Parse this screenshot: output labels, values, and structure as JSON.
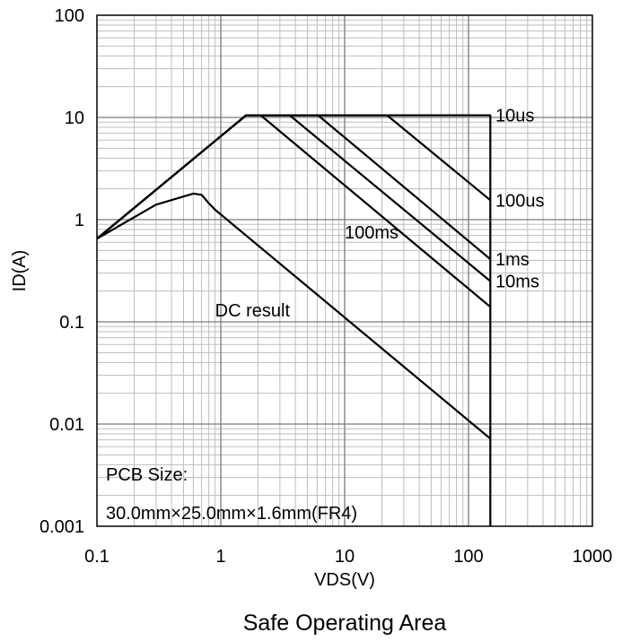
{
  "chart_data": {
    "type": "line",
    "title": "Safe Operating Area",
    "xlabel": "VDS(V)",
    "ylabel": "ID(A)",
    "x_scale": "log",
    "y_scale": "log",
    "xlim": [
      0.1,
      1000
    ],
    "ylim": [
      0.001,
      100
    ],
    "grid": true,
    "x_ticks": [
      "0.1",
      "1",
      "10",
      "100",
      "1000"
    ],
    "y_ticks": [
      "0.001",
      "0.01",
      "0.1",
      "1",
      "10",
      "100"
    ],
    "annotations": [
      "PCB Size:",
      "30.0mm×25.0mm×1.6mm(FR4)"
    ],
    "series": [
      {
        "name": "10us",
        "x": [
          0.1,
          1.6,
          150,
          150
        ],
        "y": [
          0.65,
          10.5,
          10.5,
          0.001
        ]
      },
      {
        "name": "100us",
        "x": [
          0.1,
          1.6,
          22,
          150
        ],
        "y": [
          0.65,
          10.5,
          10.5,
          1.55
        ]
      },
      {
        "name": "1ms",
        "x": [
          0.1,
          1.6,
          6.1,
          150
        ],
        "y": [
          0.65,
          10.5,
          10.5,
          0.41
        ]
      },
      {
        "name": "10ms",
        "x": [
          0.1,
          1.6,
          3.6,
          150
        ],
        "y": [
          0.65,
          10.5,
          10.5,
          0.25
        ]
      },
      {
        "name": "100ms",
        "x": [
          0.1,
          1.6,
          2.1,
          150
        ],
        "y": [
          0.65,
          10.5,
          10.5,
          0.14
        ]
      },
      {
        "name": "DC result",
        "x": [
          0.1,
          0.3,
          0.6,
          0.7,
          0.8,
          0.9,
          150
        ],
        "y": [
          0.65,
          1.4,
          1.8,
          1.75,
          1.45,
          1.25,
          0.0072
        ]
      }
    ],
    "curve_labels": [
      {
        "text": "10us",
        "x": 165,
        "y": 10.5
      },
      {
        "text": "100us",
        "x": 165,
        "y": 1.55
      },
      {
        "text": "1ms",
        "x": 165,
        "y": 0.41
      },
      {
        "text": "10ms",
        "x": 165,
        "y": 0.25
      },
      {
        "text": "100ms",
        "x": 10,
        "y": 0.75
      },
      {
        "text": "DC result",
        "x": 0.9,
        "y": 0.13
      }
    ]
  }
}
